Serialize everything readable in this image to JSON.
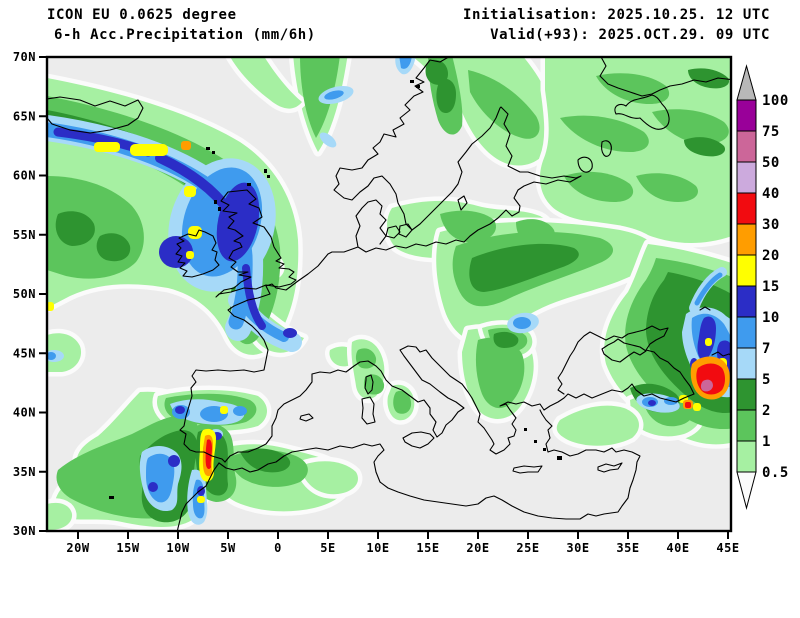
{
  "header": {
    "model_line": "ICON EU 0.0625 degree",
    "product_line": "6-h Acc.Precipitation (mm/6h)",
    "init_line": "Initialisation: 2025.10.25. 12 UTC",
    "valid_line": "Valid(+93): 2025.OCT.29. 09 UTC"
  },
  "map": {
    "lat_labels": [
      "70N",
      "65N",
      "60N",
      "55N",
      "50N",
      "45N",
      "40N",
      "35N",
      "30N"
    ],
    "lon_labels": [
      "20W",
      "15W",
      "10W",
      "5W",
      "0",
      "5E",
      "10E",
      "15E",
      "20E",
      "25E",
      "30E",
      "35E",
      "40E",
      "45E"
    ]
  },
  "legend": {
    "unit_values": [
      "100",
      "75",
      "50",
      "40",
      "30",
      "20",
      "15",
      "10",
      "7",
      "5",
      "2",
      "1",
      "0.5"
    ],
    "band_colors": [
      "#990099",
      "#cc6699",
      "#ccaadd",
      "#f20b10",
      "#ff9d00",
      "#ffff00",
      "#2b2dc6",
      "#3f9bee",
      "#a6d9f8",
      "#2e9430",
      "#5cc55c",
      "#a6f0a2"
    ],
    "overflow_top_color": "#b8b8b8",
    "overflow_bottom_color": "#fbfbfb"
  },
  "palette": {
    "bg0": "#ececec",
    "trace": "#fbfbfb",
    "lg": "#a6f0a2",
    "mg": "#5cc55c",
    "dg": "#2e9430",
    "lb": "#a6d9f8",
    "mb": "#3f9bee",
    "db": "#2b2dc6",
    "yw": "#ffff00",
    "or": "#ff9d00",
    "rd": "#f20b10",
    "pk": "#cc6699"
  },
  "chart_data": {
    "type": "heatmap",
    "title": "6-h Acc.Precipitation (mm/6h)",
    "model": "ICON EU 0.0625 degree",
    "initialisation": "2025.10.25. 12 UTC",
    "valid": "(+93) 2025.OCT.29. 09 UTC",
    "xlabel_ticks_deg_lon": [
      -20,
      -15,
      -10,
      -5,
      0,
      5,
      10,
      15,
      20,
      25,
      30,
      35,
      40,
      45
    ],
    "ylabel_ticks_deg_lat": [
      70,
      65,
      60,
      55,
      50,
      45,
      40,
      35,
      30
    ],
    "colorbar_levels_mm": [
      0.5,
      1,
      2,
      5,
      7,
      10,
      15,
      20,
      30,
      40,
      50,
      75,
      100
    ],
    "legend_position": "right"
  }
}
